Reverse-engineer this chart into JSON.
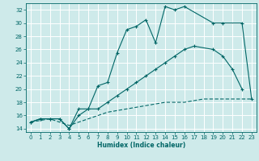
{
  "xlabel": "Humidex (Indice chaleur)",
  "bg_color": "#ceeaea",
  "grid_color": "#ffffff",
  "line_color": "#006666",
  "xlim": [
    -0.5,
    23.5
  ],
  "ylim": [
    13.5,
    33
  ],
  "xticks": [
    0,
    1,
    2,
    3,
    4,
    5,
    6,
    7,
    8,
    9,
    10,
    11,
    12,
    13,
    14,
    15,
    16,
    17,
    18,
    19,
    20,
    21,
    22,
    23
  ],
  "yticks": [
    14,
    16,
    18,
    20,
    22,
    24,
    26,
    28,
    30,
    32
  ],
  "line1_x": [
    0,
    1,
    2,
    3,
    4,
    5,
    6,
    7,
    8,
    9,
    10,
    11,
    12,
    13,
    14,
    15,
    16,
    19,
    20,
    22,
    23
  ],
  "line1_y": [
    15,
    15.5,
    15.5,
    15.5,
    14,
    17,
    17,
    20.5,
    21,
    25.5,
    29,
    29.5,
    30.5,
    27,
    32.5,
    32,
    32.5,
    30,
    30,
    30,
    18.5
  ],
  "line2_x": [
    0,
    1,
    2,
    3,
    4,
    5,
    6,
    7,
    8,
    9,
    10,
    11,
    12,
    13,
    14,
    15,
    16,
    17,
    19,
    20,
    21,
    22
  ],
  "line2_y": [
    15,
    15.5,
    15.5,
    15.5,
    14,
    16,
    17,
    17,
    18,
    19,
    20,
    21,
    22,
    23,
    24,
    25,
    26,
    26.5,
    26,
    25,
    23,
    20
  ],
  "line3_x": [
    0,
    2,
    4,
    6,
    8,
    10,
    12,
    14,
    16,
    18,
    20,
    22,
    23
  ],
  "line3_y": [
    15,
    15.5,
    14.5,
    15.5,
    16.5,
    17,
    17.5,
    18,
    18,
    18.5,
    18.5,
    18.5,
    18.5
  ]
}
